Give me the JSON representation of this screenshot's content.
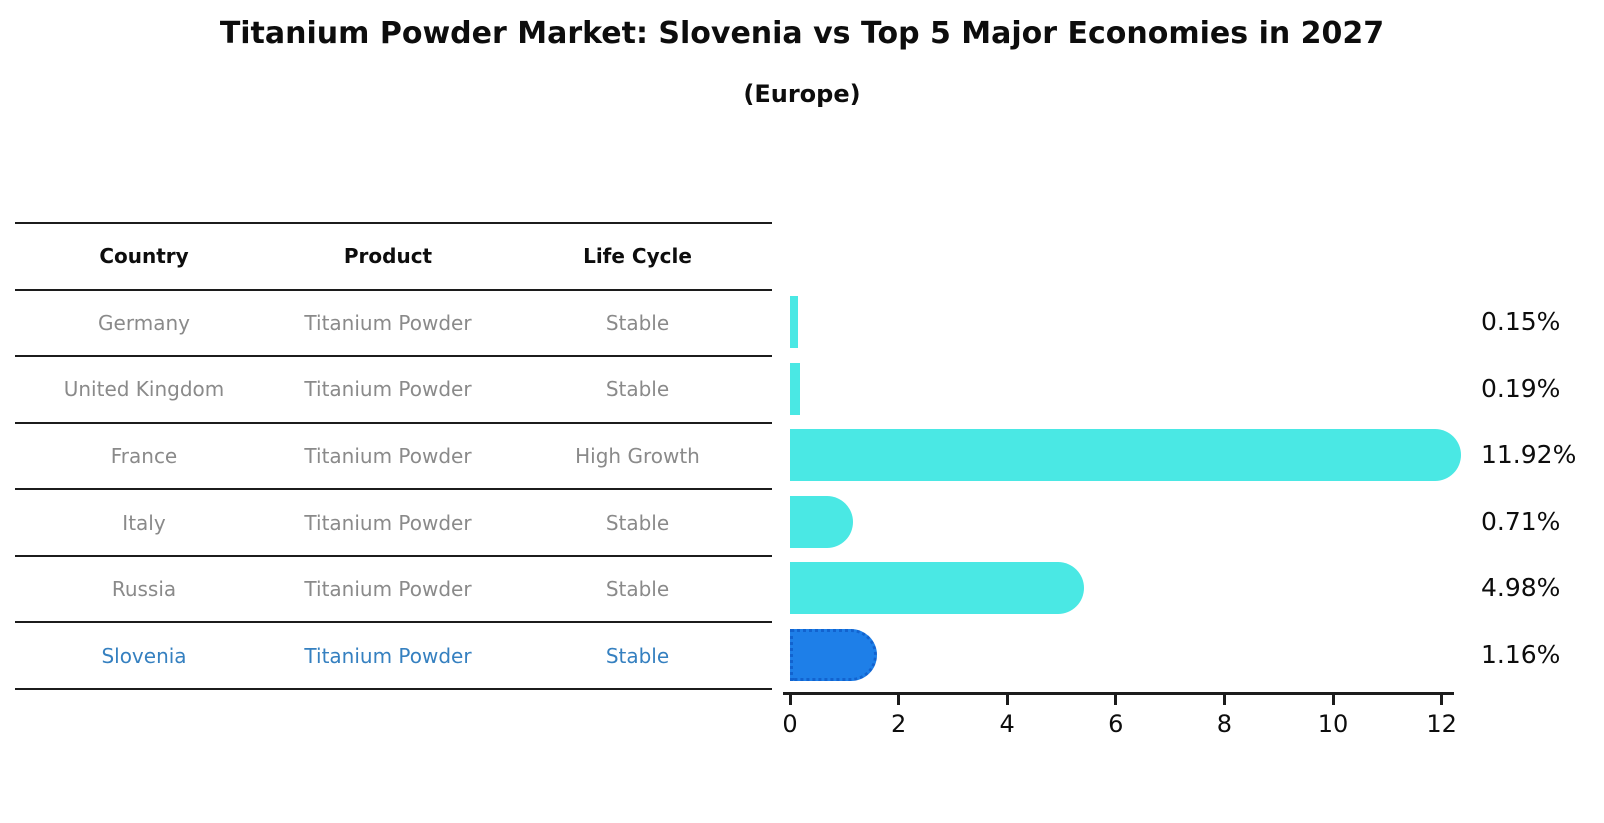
{
  "header": {
    "title": "Titanium Powder Market: Slovenia vs Top 5 Major Economies in 2027",
    "subtitle": "(Europe)"
  },
  "colors": {
    "bar_default": "#4AE8E4",
    "bar_highlight": "#1E7FE8",
    "bar_highlight_border": "#1263cf",
    "highlight_text": "#3580c0",
    "row_text": "#8a8a8a",
    "line": "#1c1c1c",
    "label_text": "#0d0d0d"
  },
  "table": {
    "headers": [
      "Country",
      "Product",
      "Life Cycle"
    ],
    "rows": [
      {
        "country": "Germany",
        "product": "Titanium Powder",
        "life_cycle": "Stable",
        "highlight": false
      },
      {
        "country": "United Kingdom",
        "product": "Titanium Powder",
        "life_cycle": "Stable",
        "highlight": false
      },
      {
        "country": "France",
        "product": "Titanium Powder",
        "life_cycle": "High Growth",
        "highlight": false
      },
      {
        "country": "Italy",
        "product": "Titanium Powder",
        "life_cycle": "Stable",
        "highlight": false
      },
      {
        "country": "Russia",
        "product": "Titanium Powder",
        "life_cycle": "Stable",
        "highlight": false
      },
      {
        "country": "Slovenia",
        "product": "Titanium Powder",
        "life_cycle": "Stable",
        "highlight": true
      }
    ]
  },
  "chart_data": {
    "type": "bar",
    "orientation": "horizontal",
    "title": "Titanium Powder Market: Slovenia vs Top 5 Major Economies in 2027",
    "subtitle": "(Europe)",
    "categories": [
      "Germany",
      "United Kingdom",
      "France",
      "Italy",
      "Russia",
      "Slovenia"
    ],
    "values": [
      0.15,
      0.19,
      11.92,
      0.71,
      4.98,
      1.16
    ],
    "value_labels": [
      "0.15%",
      "0.19%",
      "11.92%",
      "0.71%",
      "4.98%",
      "1.16%"
    ],
    "highlight_index": 5,
    "xticks": [
      0,
      2,
      4,
      6,
      8,
      10,
      12
    ],
    "xlim": [
      0,
      12.3
    ],
    "grid": false,
    "legend": false
  }
}
